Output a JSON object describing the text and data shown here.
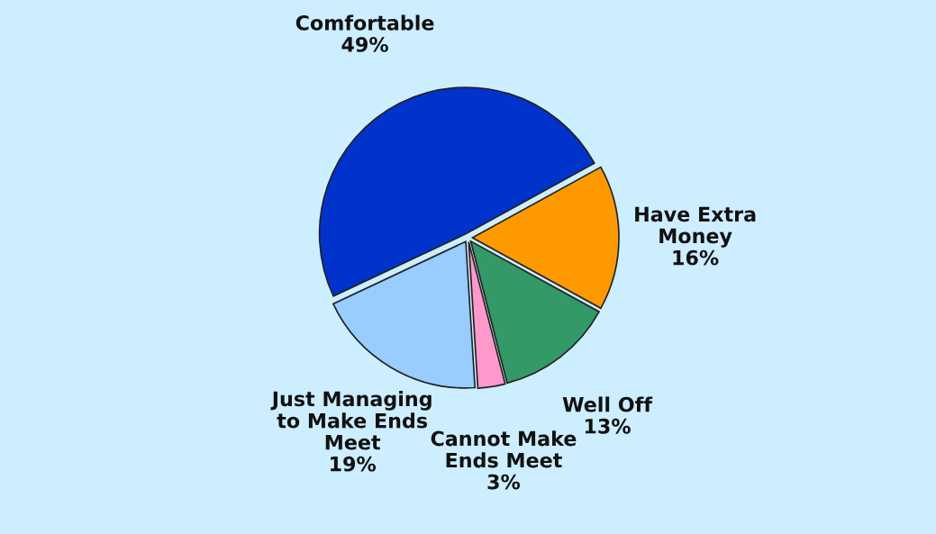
{
  "chart_data": {
    "type": "pie",
    "categories": [
      "Comfortable",
      "Have Extra\nMoney",
      "Well Off",
      "Cannot Make\nEnds Meet",
      "Just Managing\nto Make Ends\nMeet"
    ],
    "values": [
      49,
      16,
      13,
      3,
      19
    ],
    "value_labels": [
      "49%",
      "16%",
      "13%",
      "3%",
      "19%"
    ],
    "colors": [
      "#0033cc",
      "#ff9900",
      "#339966",
      "#ff99cc",
      "#99ccff"
    ],
    "legend": false
  }
}
